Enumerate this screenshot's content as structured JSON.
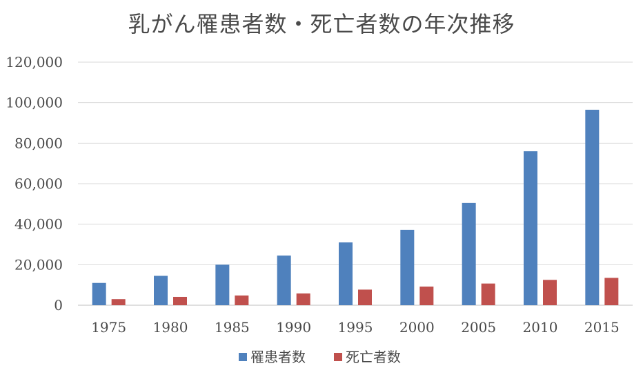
{
  "chart_data": {
    "type": "bar",
    "title": "乳がん罹患者数・死亡者数の年次推移",
    "xlabel": "",
    "ylabel": "",
    "categories": [
      "1975",
      "1980",
      "1985",
      "1990",
      "1995",
      "2000",
      "2005",
      "2010",
      "2015"
    ],
    "series": [
      {
        "name": "罹患者数",
        "color": "#4f81bd",
        "values": [
          11000,
          14500,
          20000,
          24500,
          31000,
          37200,
          50500,
          76000,
          96500
        ]
      },
      {
        "name": "死亡者数",
        "color": "#c0504d",
        "values": [
          3000,
          4100,
          4800,
          5800,
          7700,
          9200,
          10700,
          12500,
          13500
        ]
      }
    ],
    "ylim": [
      0,
      120000
    ],
    "yticks": [
      0,
      20000,
      40000,
      60000,
      80000,
      100000,
      120000
    ],
    "ytick_labels": [
      "0",
      "20,000",
      "40,000",
      "60,000",
      "80,000",
      "100,000",
      "120,000"
    ],
    "grid": true,
    "legend_position": "bottom"
  }
}
